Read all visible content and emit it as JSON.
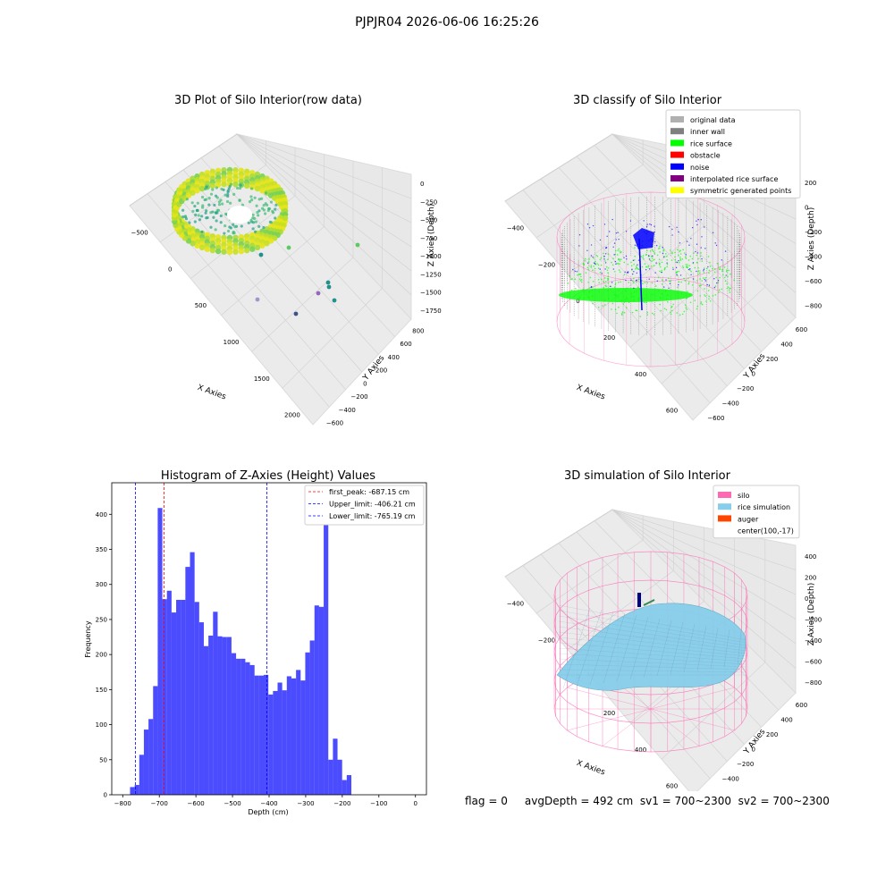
{
  "figure": {
    "suptitle": "PJPJR04 2026-06-06 16:25:26",
    "status_line": "flag = 0     avgDepth = 492 cm  sv1 = 700~2300  sv2 = 700~2300"
  },
  "colors": {
    "histogram_bar": "#0000ff",
    "first_peak_line": "#ff0000",
    "limit_lines": "#0000ff",
    "silo_wire": "#ff69b4",
    "rice_surface": "#87ceeb",
    "rice_class": "#00ff00",
    "noise_class": "#0000ff",
    "inner_wall": "#808080",
    "original_data": "#b0b0b0",
    "auger": "#ff4500",
    "pane": "#f2f2f2"
  },
  "chart_data": [
    {
      "type": "scatter",
      "projection": "3d",
      "title": "3D Plot of Silo Interior(row data)",
      "xlabel": "X Axies",
      "ylabel": "Y Axies",
      "zlabel": "Z Axies (Depth)",
      "x_ticks": [
        "−500",
        "0",
        "500",
        "1000",
        "1500",
        "2000"
      ],
      "y_ticks": [
        "−600",
        "−400",
        "−200",
        "0",
        "200",
        "400",
        "600",
        "800"
      ],
      "z_ticks": [
        "0",
        "−250",
        "−500",
        "−750",
        "−1000",
        "−1250",
        "−1500",
        "−1750"
      ],
      "colormap": "viridis",
      "grid": true
    },
    {
      "type": "scatter",
      "projection": "3d",
      "title": "3D classify of Silo Interior",
      "xlabel": "X Axies",
      "ylabel": "Y Axies",
      "zlabel": "Z Axies (Depth)",
      "x_ticks": [
        "−400",
        "−200",
        "0",
        "200",
        "400",
        "600"
      ],
      "y_ticks": [
        "−600",
        "−400",
        "−200",
        "0",
        "200",
        "400",
        "600"
      ],
      "z_ticks": [
        "200",
        "0",
        "−200",
        "−400",
        "−600",
        "−800"
      ],
      "legend_position": "top-right",
      "legend": [
        {
          "label": "original data",
          "color": "#b0b0b0"
        },
        {
          "label": "inner wall",
          "color": "#808080"
        },
        {
          "label": "rice surface",
          "color": "#00ff00"
        },
        {
          "label": "obstacle",
          "color": "#ff0000"
        },
        {
          "label": "noise",
          "color": "#0000ff"
        },
        {
          "label": "interpolated rice surface",
          "color": "#800080"
        },
        {
          "label": "symmetric generated points",
          "color": "#ffff00"
        }
      ],
      "grid": true
    },
    {
      "type": "bar",
      "title": "Histogram of Z-Axies (Height) Values",
      "xlabel": "Depth (cm)",
      "ylabel": "Frequency",
      "xlim": [
        -830,
        30
      ],
      "ylim": [
        0,
        445
      ],
      "x_ticks": [
        -800,
        -700,
        -600,
        -500,
        -400,
        -300,
        -200,
        -100,
        0
      ],
      "y_ticks": [
        0,
        50,
        100,
        150,
        200,
        250,
        300,
        350,
        400
      ],
      "bin_start": -780,
      "bin_width": 12.6,
      "values": [
        11,
        14,
        57,
        93,
        108,
        155,
        409,
        279,
        291,
        260,
        278,
        278,
        325,
        346,
        275,
        246,
        212,
        227,
        261,
        226,
        225,
        225,
        202,
        194,
        194,
        189,
        185,
        170,
        170,
        171,
        143,
        148,
        160,
        149,
        169,
        166,
        178,
        163,
        203,
        220,
        270,
        268,
        428,
        50,
        80,
        50,
        21,
        28
      ],
      "vlines": [
        {
          "label": "first_peak: -687.15 cm",
          "x": -687.15,
          "color": "#ff0000",
          "style": "dashed"
        },
        {
          "label": "Upper_limit: -406.21 cm",
          "x": -406.21,
          "color": "#0000ff",
          "style": "dashed"
        },
        {
          "label": "Lower_limit: -765.19 cm",
          "x": -765.19,
          "color": "#0000ff",
          "style": "dashed"
        }
      ],
      "legend_position": "top-right",
      "grid": false
    },
    {
      "type": "surface",
      "projection": "3d",
      "title": "3D simulation of Silo Interior",
      "xlabel": "X Axies",
      "ylabel": "Y Axies",
      "zlabel": "Z Axies (Depth)",
      "x_ticks": [
        "−400",
        "−200",
        "0",
        "200",
        "400",
        "600"
      ],
      "y_ticks": [
        "−600",
        "−400",
        "−200",
        "0",
        "200",
        "400",
        "600"
      ],
      "z_ticks": [
        "400",
        "200",
        "0",
        "−200",
        "−400",
        "−600",
        "−800"
      ],
      "legend_position": "top-right",
      "legend": [
        {
          "label": "silo",
          "color": "#ff69b4"
        },
        {
          "label": "rice simulation",
          "color": "#87ceeb"
        },
        {
          "label": "auger",
          "color": "#ff4500"
        },
        {
          "label": "center(100,-17)",
          "color": "none"
        }
      ],
      "grid": true
    }
  ]
}
